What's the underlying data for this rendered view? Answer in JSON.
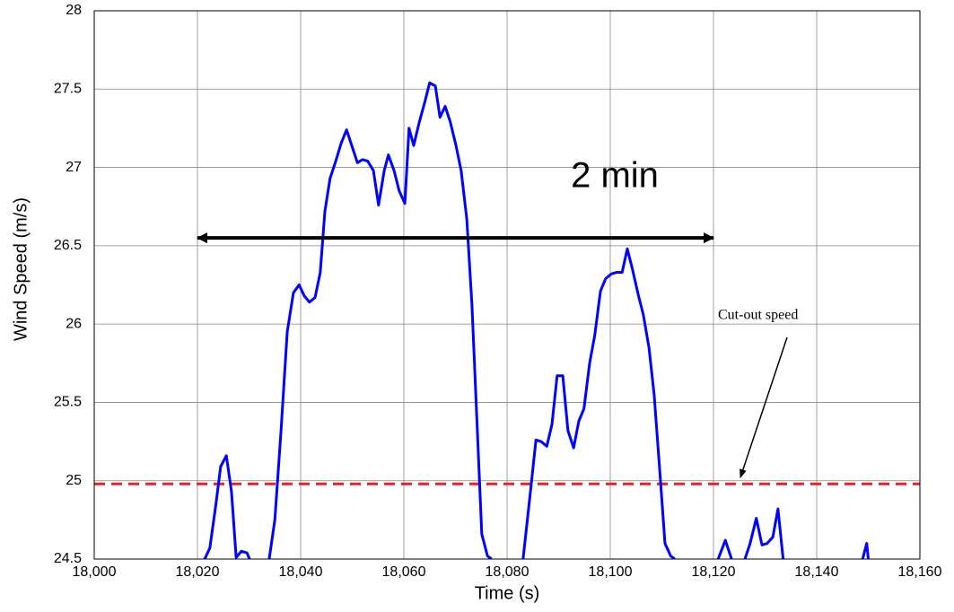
{
  "chart_data": {
    "type": "line",
    "xlabel": "Time (s)",
    "ylabel": "Wind Speed (m/s)",
    "xlim": [
      18000,
      18160
    ],
    "ylim": [
      24.5,
      28
    ],
    "xticks": [
      {
        "value": 18000,
        "label": "18,000"
      },
      {
        "value": 18020,
        "label": "18,020"
      },
      {
        "value": 18040,
        "label": "18,040"
      },
      {
        "value": 18060,
        "label": "18,060"
      },
      {
        "value": 18080,
        "label": "18,080"
      },
      {
        "value": 18100,
        "label": "18,100"
      },
      {
        "value": 18120,
        "label": "18,120"
      },
      {
        "value": 18140,
        "label": "18,140"
      },
      {
        "value": 18160,
        "label": "18,160"
      }
    ],
    "yticks": [
      24.5,
      25,
      25.5,
      26,
      26.5,
      27,
      27.5,
      28
    ],
    "grid": true,
    "series": [
      {
        "color": "#0000ff",
        "x": [
          18021.4,
          18022.4,
          18023.5,
          18024.5,
          18025.6,
          18026.6,
          18027.5,
          18028.5,
          18029.6,
          18030.1,
          null,
          18033.9,
          18035,
          18036.2,
          18037.4,
          18038.6,
          18039.7,
          18040.7,
          18041.7,
          18042.8,
          18043.8,
          18044.7,
          18045.7,
          18046.8,
          18047.8,
          18048.9,
          18049.9,
          18051,
          18052,
          18053,
          18054.1,
          18055.1,
          18056.2,
          18057,
          18058.1,
          18059.1,
          18060.2,
          18061,
          18061.9,
          18063,
          18064,
          18065,
          18066.1,
          18067,
          18068,
          18069,
          18070.1,
          18071.1,
          18072.2,
          18073.2,
          18074.1,
          18075.1,
          18076.2,
          18077,
          null,
          18083.1,
          18084.3,
          18085.6,
          18086.6,
          18087.7,
          18088.7,
          18089.7,
          18090.8,
          18091.8,
          18092.9,
          18093.9,
          18094.9,
          18096,
          18097,
          18098.1,
          18099.1,
          18100.2,
          18101.2,
          18102.3,
          18103.3,
          18104.3,
          18105.4,
          18106.4,
          18107.5,
          18108.5,
          18109.6,
          18110.6,
          18111.7,
          18112.5,
          null,
          18120.9,
          18122.3,
          18123.5,
          null,
          18126.1,
          18127.1,
          18128.3,
          18129.4,
          18130.4,
          18131.5,
          18132.5,
          18133.5,
          null,
          18148.9,
          18149.7,
          18150
        ],
        "values": [
          24.5,
          24.57,
          24.83,
          25.09,
          25.16,
          24.93,
          24.51,
          24.55,
          24.54,
          24.5,
          null,
          24.5,
          24.75,
          25.32,
          25.95,
          26.2,
          26.25,
          26.18,
          26.14,
          26.17,
          26.33,
          26.72,
          26.93,
          27.04,
          27.15,
          27.24,
          27.14,
          27.03,
          27.05,
          27.04,
          26.98,
          26.76,
          26.98,
          27.08,
          26.98,
          26.85,
          26.77,
          27.25,
          27.14,
          27.29,
          27.41,
          27.54,
          27.52,
          27.32,
          27.39,
          27.29,
          27.14,
          26.98,
          26.67,
          26.12,
          25.43,
          24.66,
          24.52,
          24.5,
          null,
          24.5,
          24.86,
          25.26,
          25.25,
          25.22,
          25.36,
          25.67,
          25.67,
          25.32,
          25.21,
          25.38,
          25.46,
          25.75,
          25.93,
          26.21,
          26.29,
          26.32,
          26.33,
          26.33,
          26.48,
          26.35,
          26.19,
          26.06,
          25.85,
          25.55,
          25.06,
          24.6,
          24.52,
          24.5,
          null,
          24.5,
          24.62,
          24.5,
          null,
          24.5,
          24.6,
          24.76,
          24.59,
          24.6,
          24.64,
          24.82,
          24.5,
          null,
          24.5,
          24.6,
          24.5
        ]
      }
    ],
    "threshold": {
      "label": "Cut-out speed",
      "value": 24.98,
      "color": "#e82020"
    },
    "span": {
      "label": "2 min",
      "x": [
        18020,
        18120
      ],
      "y": 26.55
    }
  }
}
